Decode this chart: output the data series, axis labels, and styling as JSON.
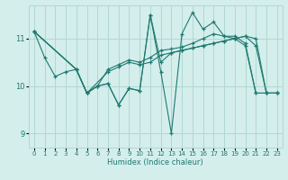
{
  "xlabel": "Humidex (Indice chaleur)",
  "bg_color": "#d4eeec",
  "grid_color": "#b0d8d4",
  "line_color": "#1e7a70",
  "xlim": [
    -0.5,
    23.5
  ],
  "ylim": [
    8.7,
    11.7
  ],
  "yticks": [
    9,
    10,
    11
  ],
  "xticks": [
    0,
    1,
    2,
    3,
    4,
    5,
    6,
    7,
    8,
    9,
    10,
    11,
    12,
    13,
    14,
    15,
    16,
    17,
    18,
    19,
    20,
    21,
    22,
    23
  ],
  "series": [
    [
      0,
      11.15,
      1,
      10.6,
      2,
      10.2,
      3,
      10.3,
      4,
      10.35,
      5,
      9.85,
      6,
      10.0,
      7,
      10.05,
      8,
      9.6,
      9,
      9.95,
      10,
      9.9,
      11,
      11.5,
      12,
      10.3,
      13,
      9.0,
      14,
      11.1,
      15,
      11.55,
      16,
      11.2,
      17,
      11.35,
      18,
      11.05,
      19,
      11.0,
      20,
      10.85,
      21,
      9.85,
      22,
      9.85,
      23,
      9.85
    ],
    [
      0,
      11.15,
      4,
      10.35,
      5,
      9.85,
      7,
      10.3,
      8,
      10.4,
      9,
      10.5,
      10,
      10.45,
      11,
      10.5,
      12,
      10.65,
      13,
      10.7,
      14,
      10.75,
      15,
      10.8,
      16,
      10.85,
      17,
      10.9,
      18,
      10.95,
      19,
      11.0,
      20,
      11.05,
      21,
      11.0,
      22,
      9.85,
      23,
      9.85
    ],
    [
      0,
      11.15,
      4,
      10.35,
      5,
      9.85,
      6,
      10.0,
      7,
      10.35,
      8,
      10.45,
      9,
      10.55,
      10,
      10.5,
      11,
      10.6,
      12,
      10.75,
      13,
      10.78,
      14,
      10.82,
      15,
      10.9,
      16,
      11.0,
      17,
      11.1,
      18,
      11.05,
      19,
      11.05,
      20,
      10.9,
      21,
      9.85,
      22,
      9.85,
      23,
      9.85
    ],
    [
      0,
      11.15,
      4,
      10.35,
      5,
      9.85,
      6,
      10.0,
      7,
      10.05,
      8,
      9.6,
      9,
      9.95,
      10,
      9.9,
      11,
      11.5,
      12,
      10.5,
      13,
      10.7,
      14,
      10.75,
      15,
      10.8,
      16,
      10.85,
      17,
      10.9,
      18,
      10.95,
      19,
      11.0,
      20,
      11.05,
      21,
      10.85,
      22,
      9.85,
      23,
      9.85
    ]
  ]
}
